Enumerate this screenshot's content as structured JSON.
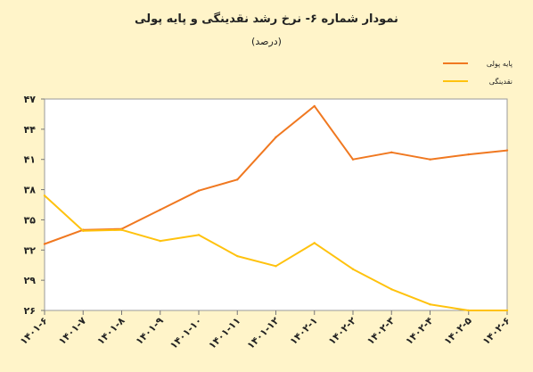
{
  "chart_data": {
    "type": "line",
    "title": "نمودار شماره ۶- نرخ رشد نقدینگی و پایه پولی",
    "subtitle": "(درصد)",
    "xlabel": "",
    "ylabel": "",
    "categories": [
      "۱۴۰۱-۶",
      "۱۴۰۱-۷",
      "۱۴۰۱-۸",
      "۱۴۰۱-۹",
      "۱۴۰۱-۱۰",
      "۱۴۰۱-۱۱",
      "۱۴۰۱-۱۲",
      "۱۴۰۲-۱",
      "۱۴۰۲-۲",
      "۱۴۰۲-۳",
      "۱۴۰۲-۴",
      "۱۴۰۲-۵",
      "۱۴۰۲-۶"
    ],
    "ylim": [
      26,
      47
    ],
    "yticks": [
      26,
      29,
      32,
      35,
      38,
      41,
      44,
      47
    ],
    "ytick_labels": [
      "۲۶",
      "۲۹",
      "۳۲",
      "۳۵",
      "۳۸",
      "۴۱",
      "۴۴",
      "۴۷"
    ],
    "grid": false,
    "legend_position": "top-right",
    "series": [
      {
        "name": "پایه پولی",
        "color": "#f07820",
        "values": [
          32.6,
          34.0,
          34.1,
          36.0,
          37.9,
          39.0,
          43.2,
          46.3,
          41.0,
          41.7,
          41.0,
          41.5,
          41.9
        ]
      },
      {
        "name": "نقدینگی",
        "color": "#ffc20e",
        "values": [
          37.4,
          33.9,
          34.0,
          32.9,
          33.5,
          31.4,
          30.4,
          32.7,
          30.1,
          28.1,
          26.6,
          26.0,
          26.0
        ]
      }
    ]
  }
}
